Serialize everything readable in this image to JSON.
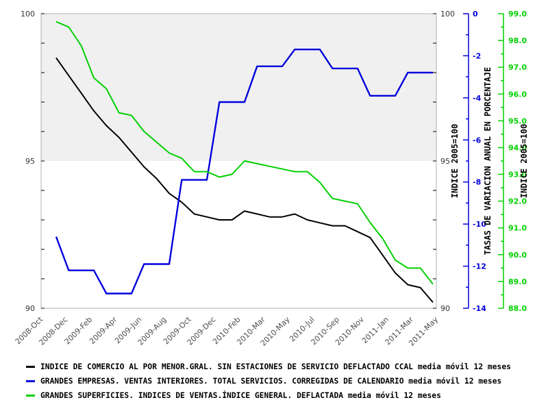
{
  "chart_data": {
    "type": "line",
    "title": "",
    "n_points": 31,
    "x": [
      "2008-Nov",
      "2008-Dec",
      "2009-Jan",
      "2009-Feb",
      "2009-Mar",
      "2009-Apr",
      "2009-May",
      "2009-Jun",
      "2009-Jul",
      "2009-Aug",
      "2009-Sep",
      "2009-Oct",
      "2009-Nov",
      "2009-Dec",
      "2010-Jan",
      "2010-Feb",
      "2010-Mar",
      "2010-Apr",
      "2010-May",
      "2010-Jun",
      "2010-Jul",
      "2010-Aug",
      "2010-Sep",
      "2010-Oct",
      "2010-Nov",
      "2010-Dec",
      "2011-Jan",
      "2011-Feb",
      "2011-Mar",
      "2011-Apr",
      "2011-May"
    ],
    "x_tick_labels": [
      "2008-Oct",
      "2008-Dec",
      "2009-Feb",
      "2009-Apr",
      "2009-Jun",
      "2009-Aug",
      "2009-Oct",
      "2009-Dec",
      "2010-Feb",
      "2010-Mar",
      "2010-May",
      "2010-Jul",
      "2010-Sep",
      "2010-Nov",
      "2011-Jan",
      "2011-Mar",
      "2011-May"
    ],
    "series": [
      {
        "id": "comercio-menor",
        "name": "INDICE DE COMERCIO AL POR MENOR.GRAL. SIN ESTACIONES DE SERVICIO DEFLACTADO CCAL media móvil 12 meses",
        "color": "#000000",
        "axis": "left",
        "values": [
          98.5,
          97.9,
          97.3,
          96.7,
          96.2,
          95.8,
          95.3,
          94.8,
          94.4,
          93.9,
          93.6,
          93.2,
          93.1,
          93.0,
          93.0,
          93.3,
          93.2,
          93.1,
          93.1,
          93.2,
          93.0,
          92.9,
          92.8,
          92.8,
          92.6,
          92.4,
          91.8,
          91.2,
          90.8,
          90.7,
          90.2
        ]
      },
      {
        "id": "grandes-empresas",
        "name": "GRANDES EMPRESAS. VENTAS INTERIORES. TOTAL SERVICIOS. CORREGIDAS DE CALENDARIO media móvil 12 meses",
        "color": "#0000dd",
        "axis": "blue",
        "values": [
          -10.6,
          -12.2,
          -12.2,
          -12.2,
          -13.3,
          -13.3,
          -13.3,
          -11.9,
          -11.9,
          -11.9,
          -7.9,
          -7.9,
          -7.9,
          -4.2,
          -4.2,
          -4.2,
          -2.5,
          -2.5,
          -2.5,
          -1.7,
          -1.7,
          -1.7,
          -2.6,
          -2.6,
          -2.6,
          -3.9,
          -3.9,
          -3.9,
          -2.8,
          -2.8,
          -2.8
        ]
      },
      {
        "id": "grandes-superficies",
        "name": "GRANDES SUPERFICIES. INDICES DE VENTAS.ÍNDICE GENERAL. DEFLACTADA media móvil 12 meses",
        "color": "#00d000",
        "axis": "green",
        "values": [
          98.7,
          98.5,
          97.8,
          96.6,
          96.2,
          95.3,
          95.2,
          94.6,
          94.2,
          93.8,
          93.6,
          93.1,
          93.1,
          92.9,
          93.0,
          93.5,
          93.4,
          93.3,
          93.2,
          93.1,
          93.1,
          92.7,
          92.1,
          92.0,
          91.9,
          91.2,
          90.6,
          89.8,
          89.5,
          89.5,
          88.9
        ]
      }
    ],
    "axes": {
      "left": {
        "min": 90,
        "max": 100,
        "tick_values": [
          100,
          95,
          90
        ],
        "tick_labels": [
          "100",
          "95",
          "90"
        ],
        "minor_step": 1,
        "label_color": "#333333"
      },
      "right": {
        "min": 90,
        "max": 100,
        "tick_values": [
          100,
          95,
          90
        ],
        "tick_labels": [
          "100",
          "95",
          "90"
        ],
        "minor_step": 1,
        "title": "INDICE 2005=100",
        "label_color": "#333333",
        "title_color": "#000000"
      },
      "blue": {
        "min": -14,
        "max": 0,
        "tick_values": [
          0,
          -2,
          -4,
          -6,
          -8,
          -10,
          -12,
          -14
        ],
        "tick_labels": [
          "0",
          "-2",
          "-4",
          "-6",
          "-8",
          "-10",
          "-12",
          "-14"
        ],
        "minor_step": 1,
        "title": "TASAS DE VARIACION ANUAL EN PORCENTAJE",
        "color": "#0000dd",
        "title_color": "#000000"
      },
      "green": {
        "min": 88,
        "max": 99,
        "tick_values": [
          99,
          98,
          97,
          96,
          95,
          94,
          93,
          92,
          91,
          90,
          89,
          88
        ],
        "tick_labels": [
          "99.0",
          "98.0",
          "97.0",
          "96.0",
          "95.0",
          "94.0",
          "93.0",
          "92.0",
          "91.0",
          "90.0",
          "89.0",
          "88.0"
        ],
        "minor_step": 0.5,
        "title": "INDICE 2005=100",
        "color": "#00d000",
        "title_color": "#000000"
      }
    },
    "shaded_band": {
      "from": 95,
      "to": 100,
      "color": "#f0f0f0"
    },
    "frame_color": "#b0b0b0",
    "x_label_color": "#4d4d4d",
    "grid": false,
    "legend_position": "bottom-left"
  }
}
